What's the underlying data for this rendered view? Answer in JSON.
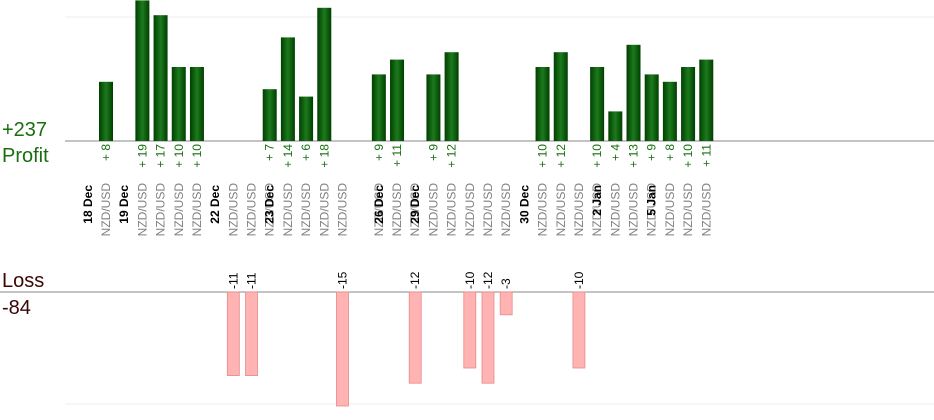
{
  "summary": {
    "profit_total": "+237",
    "profit_label": "Profit",
    "loss_label": "Loss",
    "loss_total": "-84"
  },
  "colors": {
    "profit_bar_dark": "#003f00",
    "profit_bar_light": "#1d7a1d",
    "profit_text": "#1a6e12",
    "loss_bar": "#ffb3b3",
    "loss_bar_edge": "#e88a8a",
    "loss_text": "#000000",
    "date_text": "#000000",
    "pair_text": "#808080",
    "axis": "#888888",
    "grid": "#eeeeee"
  },
  "chart_data": {
    "type": "bar",
    "title": "",
    "ylim_profit": [
      0,
      19
    ],
    "ylim_loss": [
      -15,
      0
    ],
    "trades": [
      {
        "date": "18 Dec",
        "pair": "NZD/USD",
        "value": 8
      },
      {
        "date": "19 Dec",
        "pair": "NZD/USD",
        "value": 19
      },
      {
        "date": "",
        "pair": "NZD/USD",
        "value": 17
      },
      {
        "date": "",
        "pair": "NZD/USD",
        "value": 10
      },
      {
        "date": "",
        "pair": "NZD/USD",
        "value": 10
      },
      {
        "date": "22 Dec",
        "pair": "NZD/USD",
        "value": -11
      },
      {
        "date": "",
        "pair": "NZD/USD",
        "value": -11
      },
      {
        "date": "",
        "pair": "NZD/USD",
        "value": 7
      },
      {
        "date": "23 Dec",
        "pair": "NZD/USD",
        "value": 14
      },
      {
        "date": "",
        "pair": "NZD/USD",
        "value": 6
      },
      {
        "date": "",
        "pair": "NZD/USD",
        "value": 18
      },
      {
        "date": "",
        "pair": "NZD/USD",
        "value": -15
      },
      {
        "date": "",
        "pair": "NZD/USD",
        "value": 9
      },
      {
        "date": "26 Dec",
        "pair": "NZD/USD",
        "value": 11
      },
      {
        "date": "",
        "pair": "NZD/USD",
        "value": -12
      },
      {
        "date": "29 Dec",
        "pair": "NZD/USD",
        "value": 9
      },
      {
        "date": "",
        "pair": "NZD/USD",
        "value": 12
      },
      {
        "date": "",
        "pair": "NZD/USD",
        "value": -10
      },
      {
        "date": "",
        "pair": "NZD/USD",
        "value": -12
      },
      {
        "date": "",
        "pair": "NZD/USD",
        "value": -3
      },
      {
        "date": "30 Dec",
        "pair": "NZD/USD",
        "value": 10
      },
      {
        "date": "",
        "pair": "NZD/USD",
        "value": 12
      },
      {
        "date": "",
        "pair": "NZD/USD",
        "value": -10
      },
      {
        "date": "",
        "pair": "NZD/USD",
        "value": 10
      },
      {
        "date": "2 Jan",
        "pair": "NZD/USD",
        "value": 4
      },
      {
        "date": "",
        "pair": "NZD/USD",
        "value": 13
      },
      {
        "date": "",
        "pair": "NZD/USD",
        "value": 9
      },
      {
        "date": "5 Jan",
        "pair": "NZD/USD",
        "value": 8
      },
      {
        "date": "",
        "pair": "NZD/USD",
        "value": 10
      },
      {
        "date": "",
        "pair": "NZD/USD",
        "value": 11
      }
    ]
  }
}
